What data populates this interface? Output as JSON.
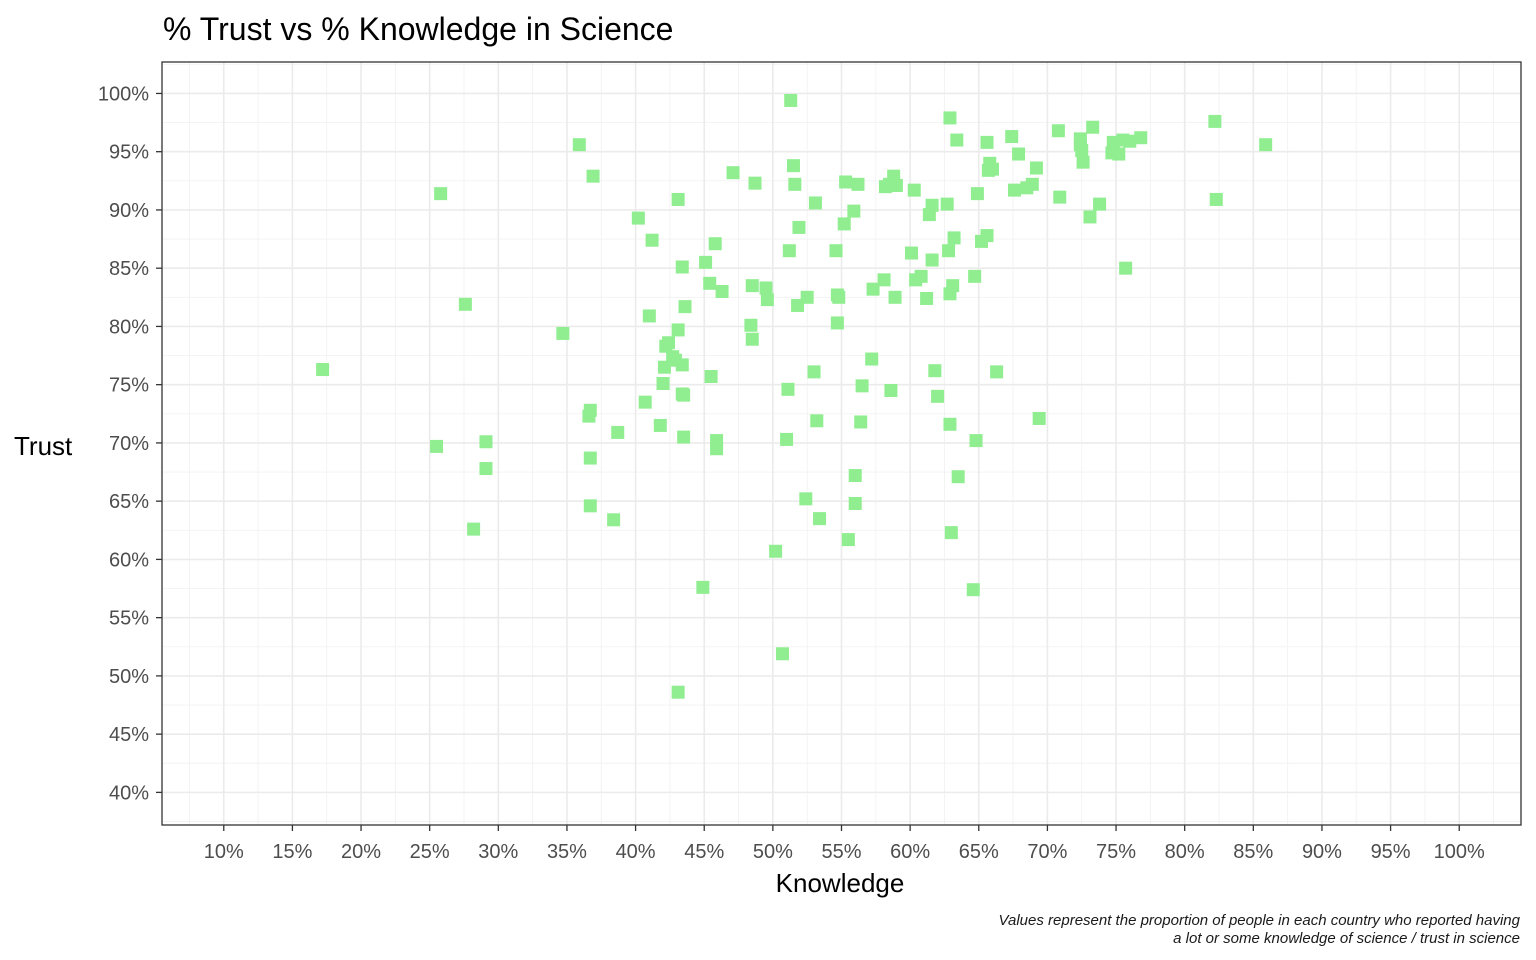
{
  "chart_data": {
    "type": "scatter",
    "title": "% Trust vs % Knowledge in Science",
    "xlabel": "Knowledge",
    "ylabel": "Trust",
    "caption": [
      "Values represent the proportion of people in each country who reported having",
      "a lot or some knowledge of science / trust in science"
    ],
    "xlim": [
      0.055,
      1.045
    ],
    "ylim": [
      0.372,
      1.027
    ],
    "x_ticks": [
      0.1,
      0.15,
      0.2,
      0.25,
      0.3,
      0.35,
      0.4,
      0.45,
      0.5,
      0.55,
      0.6,
      0.65,
      0.7,
      0.75,
      0.8,
      0.85,
      0.9,
      0.95,
      1.0
    ],
    "x_tick_labels": [
      "10%",
      "15%",
      "20%",
      "25%",
      "30%",
      "35%",
      "40%",
      "45%",
      "50%",
      "55%",
      "60%",
      "65%",
      "70%",
      "75%",
      "80%",
      "85%",
      "90%",
      "95%",
      "100%"
    ],
    "y_ticks": [
      0.4,
      0.45,
      0.5,
      0.55,
      0.6,
      0.65,
      0.7,
      0.75,
      0.8,
      0.85,
      0.9,
      0.95,
      1.0
    ],
    "y_tick_labels": [
      "40%",
      "45%",
      "50%",
      "55%",
      "60%",
      "65%",
      "70%",
      "75%",
      "80%",
      "85%",
      "90%",
      "95%",
      "100%"
    ],
    "grid": true,
    "legend": "none",
    "point_color": "#90ee90",
    "points": [
      [
        0.172,
        0.763
      ],
      [
        0.255,
        0.697
      ],
      [
        0.258,
        0.914
      ],
      [
        0.276,
        0.819
      ],
      [
        0.282,
        0.626
      ],
      [
        0.291,
        0.701
      ],
      [
        0.291,
        0.678
      ],
      [
        0.347,
        0.794
      ],
      [
        0.359,
        0.956
      ],
      [
        0.366,
        0.723
      ],
      [
        0.367,
        0.728
      ],
      [
        0.367,
        0.687
      ],
      [
        0.367,
        0.646
      ],
      [
        0.369,
        0.929
      ],
      [
        0.384,
        0.634
      ],
      [
        0.387,
        0.709
      ],
      [
        0.402,
        0.893
      ],
      [
        0.407,
        0.735
      ],
      [
        0.41,
        0.809
      ],
      [
        0.412,
        0.874
      ],
      [
        0.418,
        0.715
      ],
      [
        0.42,
        0.751
      ],
      [
        0.421,
        0.765
      ],
      [
        0.422,
        0.783
      ],
      [
        0.424,
        0.786
      ],
      [
        0.427,
        0.774
      ],
      [
        0.429,
        0.771
      ],
      [
        0.431,
        0.797
      ],
      [
        0.431,
        0.909
      ],
      [
        0.431,
        0.486
      ],
      [
        0.434,
        0.767
      ],
      [
        0.434,
        0.742
      ],
      [
        0.434,
        0.851
      ],
      [
        0.435,
        0.741
      ],
      [
        0.435,
        0.705
      ],
      [
        0.436,
        0.817
      ],
      [
        0.449,
        0.576
      ],
      [
        0.451,
        0.855
      ],
      [
        0.454,
        0.837
      ],
      [
        0.455,
        0.757
      ],
      [
        0.458,
        0.871
      ],
      [
        0.459,
        0.702
      ],
      [
        0.459,
        0.695
      ],
      [
        0.463,
        0.83
      ],
      [
        0.471,
        0.932
      ],
      [
        0.484,
        0.801
      ],
      [
        0.485,
        0.789
      ],
      [
        0.485,
        0.835
      ],
      [
        0.487,
        0.923
      ],
      [
        0.495,
        0.833
      ],
      [
        0.496,
        0.823
      ],
      [
        0.502,
        0.607
      ],
      [
        0.507,
        0.519
      ],
      [
        0.51,
        0.703
      ],
      [
        0.511,
        0.746
      ],
      [
        0.512,
        0.865
      ],
      [
        0.513,
        0.994
      ],
      [
        0.515,
        0.938
      ],
      [
        0.516,
        0.922
      ],
      [
        0.518,
        0.818
      ],
      [
        0.519,
        0.885
      ],
      [
        0.524,
        0.652
      ],
      [
        0.525,
        0.825
      ],
      [
        0.53,
        0.761
      ],
      [
        0.531,
        0.906
      ],
      [
        0.532,
        0.719
      ],
      [
        0.534,
        0.635
      ],
      [
        0.546,
        0.865
      ],
      [
        0.547,
        0.803
      ],
      [
        0.547,
        0.827
      ],
      [
        0.548,
        0.825
      ],
      [
        0.552,
        0.888
      ],
      [
        0.553,
        0.924
      ],
      [
        0.555,
        0.617
      ],
      [
        0.559,
        0.899
      ],
      [
        0.56,
        0.648
      ],
      [
        0.56,
        0.672
      ],
      [
        0.562,
        0.922
      ],
      [
        0.564,
        0.718
      ],
      [
        0.565,
        0.749
      ],
      [
        0.572,
        0.772
      ],
      [
        0.573,
        0.832
      ],
      [
        0.581,
        0.84
      ],
      [
        0.582,
        0.92
      ],
      [
        0.585,
        0.922
      ],
      [
        0.586,
        0.745
      ],
      [
        0.588,
        0.929
      ],
      [
        0.589,
        0.825
      ],
      [
        0.59,
        0.921
      ],
      [
        0.601,
        0.863
      ],
      [
        0.603,
        0.917
      ],
      [
        0.604,
        0.84
      ],
      [
        0.608,
        0.843
      ],
      [
        0.612,
        0.824
      ],
      [
        0.614,
        0.896
      ],
      [
        0.616,
        0.904
      ],
      [
        0.616,
        0.857
      ],
      [
        0.618,
        0.762
      ],
      [
        0.62,
        0.74
      ],
      [
        0.627,
        0.905
      ],
      [
        0.628,
        0.865
      ],
      [
        0.629,
        0.716
      ],
      [
        0.629,
        0.979
      ],
      [
        0.629,
        0.828
      ],
      [
        0.63,
        0.623
      ],
      [
        0.631,
        0.835
      ],
      [
        0.632,
        0.876
      ],
      [
        0.634,
        0.96
      ],
      [
        0.635,
        0.671
      ],
      [
        0.646,
        0.574
      ],
      [
        0.647,
        0.843
      ],
      [
        0.648,
        0.702
      ],
      [
        0.649,
        0.914
      ],
      [
        0.652,
        0.873
      ],
      [
        0.656,
        0.958
      ],
      [
        0.656,
        0.878
      ],
      [
        0.657,
        0.934
      ],
      [
        0.658,
        0.94
      ],
      [
        0.66,
        0.935
      ],
      [
        0.663,
        0.761
      ],
      [
        0.674,
        0.963
      ],
      [
        0.676,
        0.917
      ],
      [
        0.679,
        0.948
      ],
      [
        0.685,
        0.919
      ],
      [
        0.689,
        0.922
      ],
      [
        0.692,
        0.936
      ],
      [
        0.694,
        0.721
      ],
      [
        0.708,
        0.968
      ],
      [
        0.709,
        0.911
      ],
      [
        0.724,
        0.961
      ],
      [
        0.724,
        0.956
      ],
      [
        0.725,
        0.951
      ],
      [
        0.726,
        0.941
      ],
      [
        0.731,
        0.894
      ],
      [
        0.733,
        0.971
      ],
      [
        0.738,
        0.905
      ],
      [
        0.747,
        0.949
      ],
      [
        0.748,
        0.958
      ],
      [
        0.752,
        0.948
      ],
      [
        0.755,
        0.96
      ],
      [
        0.757,
        0.85
      ],
      [
        0.76,
        0.959
      ],
      [
        0.768,
        0.962
      ],
      [
        0.822,
        0.976
      ],
      [
        0.823,
        0.909
      ],
      [
        0.859,
        0.956
      ]
    ]
  }
}
